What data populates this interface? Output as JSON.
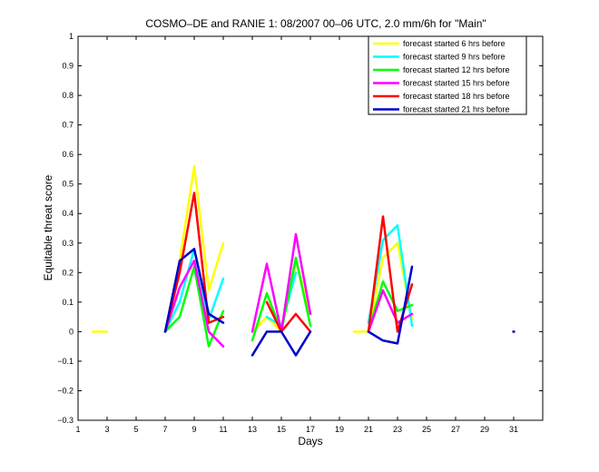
{
  "chart_data": {
    "type": "line",
    "title": "COSMO–DE and RANIE 1: 08/2007 00–06 UTC, 2.0 mm/6h for \"Main\"",
    "xlabel": "Days",
    "ylabel": "Equitable threat score",
    "xlim": [
      1,
      33
    ],
    "ylim": [
      -0.3,
      1
    ],
    "x_ticks": [
      1,
      3,
      5,
      7,
      9,
      11,
      13,
      15,
      17,
      19,
      21,
      23,
      25,
      27,
      29,
      31
    ],
    "y_ticks": [
      -0.3,
      -0.2,
      -0.1,
      0,
      0.1,
      0.2,
      0.3,
      0.4,
      0.5,
      0.6,
      0.7,
      0.8,
      0.9,
      1
    ],
    "y_tick_labels": [
      "−0.3",
      "−0.2",
      "−0.1",
      "0",
      "0.1",
      "0.2",
      "0.3",
      "0.4",
      "0.5",
      "0.6",
      "0.7",
      "0.8",
      "0.9",
      "1"
    ],
    "grid": false,
    "legend_position": "top-right",
    "series": [
      {
        "name": "forecast started 6 hrs before",
        "color": "#ffff00",
        "values": [
          null,
          0,
          0,
          null,
          null,
          null,
          0,
          0.24,
          0.56,
          0.14,
          0.3,
          null,
          0,
          0.05,
          0,
          0.24,
          0.06,
          null,
          null,
          0,
          0,
          0.25,
          0.3,
          0.04,
          null,
          null,
          null,
          null,
          null,
          null,
          0
        ]
      },
      {
        "name": "forecast started 9 hrs before",
        "color": "#00ffff",
        "values": [
          null,
          null,
          null,
          null,
          null,
          null,
          0,
          0.1,
          0.28,
          0.04,
          0.18,
          null,
          null,
          0.05,
          0.02,
          0.2,
          null,
          null,
          null,
          null,
          0.03,
          0.31,
          0.36,
          0.02,
          null,
          null,
          null,
          null,
          null,
          null,
          null
        ]
      },
      {
        "name": "forecast started 12 hrs before",
        "color": "#00ff00",
        "values": [
          null,
          null,
          null,
          null,
          null,
          null,
          0,
          0.05,
          0.22,
          -0.05,
          0.07,
          null,
          -0.03,
          0.13,
          0,
          0.25,
          0.02,
          null,
          null,
          null,
          0,
          0.17,
          0.07,
          0.09,
          null,
          null,
          null,
          null,
          null,
          null,
          null
        ]
      },
      {
        "name": "forecast started 15 hrs before",
        "color": "#ff00ff",
        "values": [
          null,
          null,
          null,
          null,
          null,
          null,
          0,
          0.15,
          0.24,
          0,
          -0.05,
          null,
          0,
          0.23,
          0,
          0.33,
          0.06,
          null,
          null,
          null,
          0,
          0.14,
          0.03,
          0.06,
          null,
          null,
          null,
          null,
          null,
          null,
          null
        ]
      },
      {
        "name": "forecast started 18 hrs before",
        "color": "#ff0000",
        "values": [
          null,
          null,
          null,
          null,
          null,
          null,
          0,
          0.2,
          0.47,
          0.03,
          0.05,
          null,
          null,
          0.1,
          0,
          0.06,
          0,
          null,
          null,
          null,
          0,
          0.39,
          0,
          0.16,
          null,
          null,
          null,
          null,
          null,
          null,
          null
        ]
      },
      {
        "name": "forecast started 21 hrs before",
        "color": "#0000cc",
        "values": [
          null,
          null,
          null,
          null,
          null,
          null,
          0,
          0.24,
          0.28,
          0.06,
          0.03,
          null,
          -0.08,
          0,
          0,
          -0.08,
          0,
          null,
          null,
          null,
          0,
          -0.03,
          -0.04,
          0.22,
          null,
          null,
          null,
          null,
          null,
          null,
          0
        ]
      }
    ]
  }
}
